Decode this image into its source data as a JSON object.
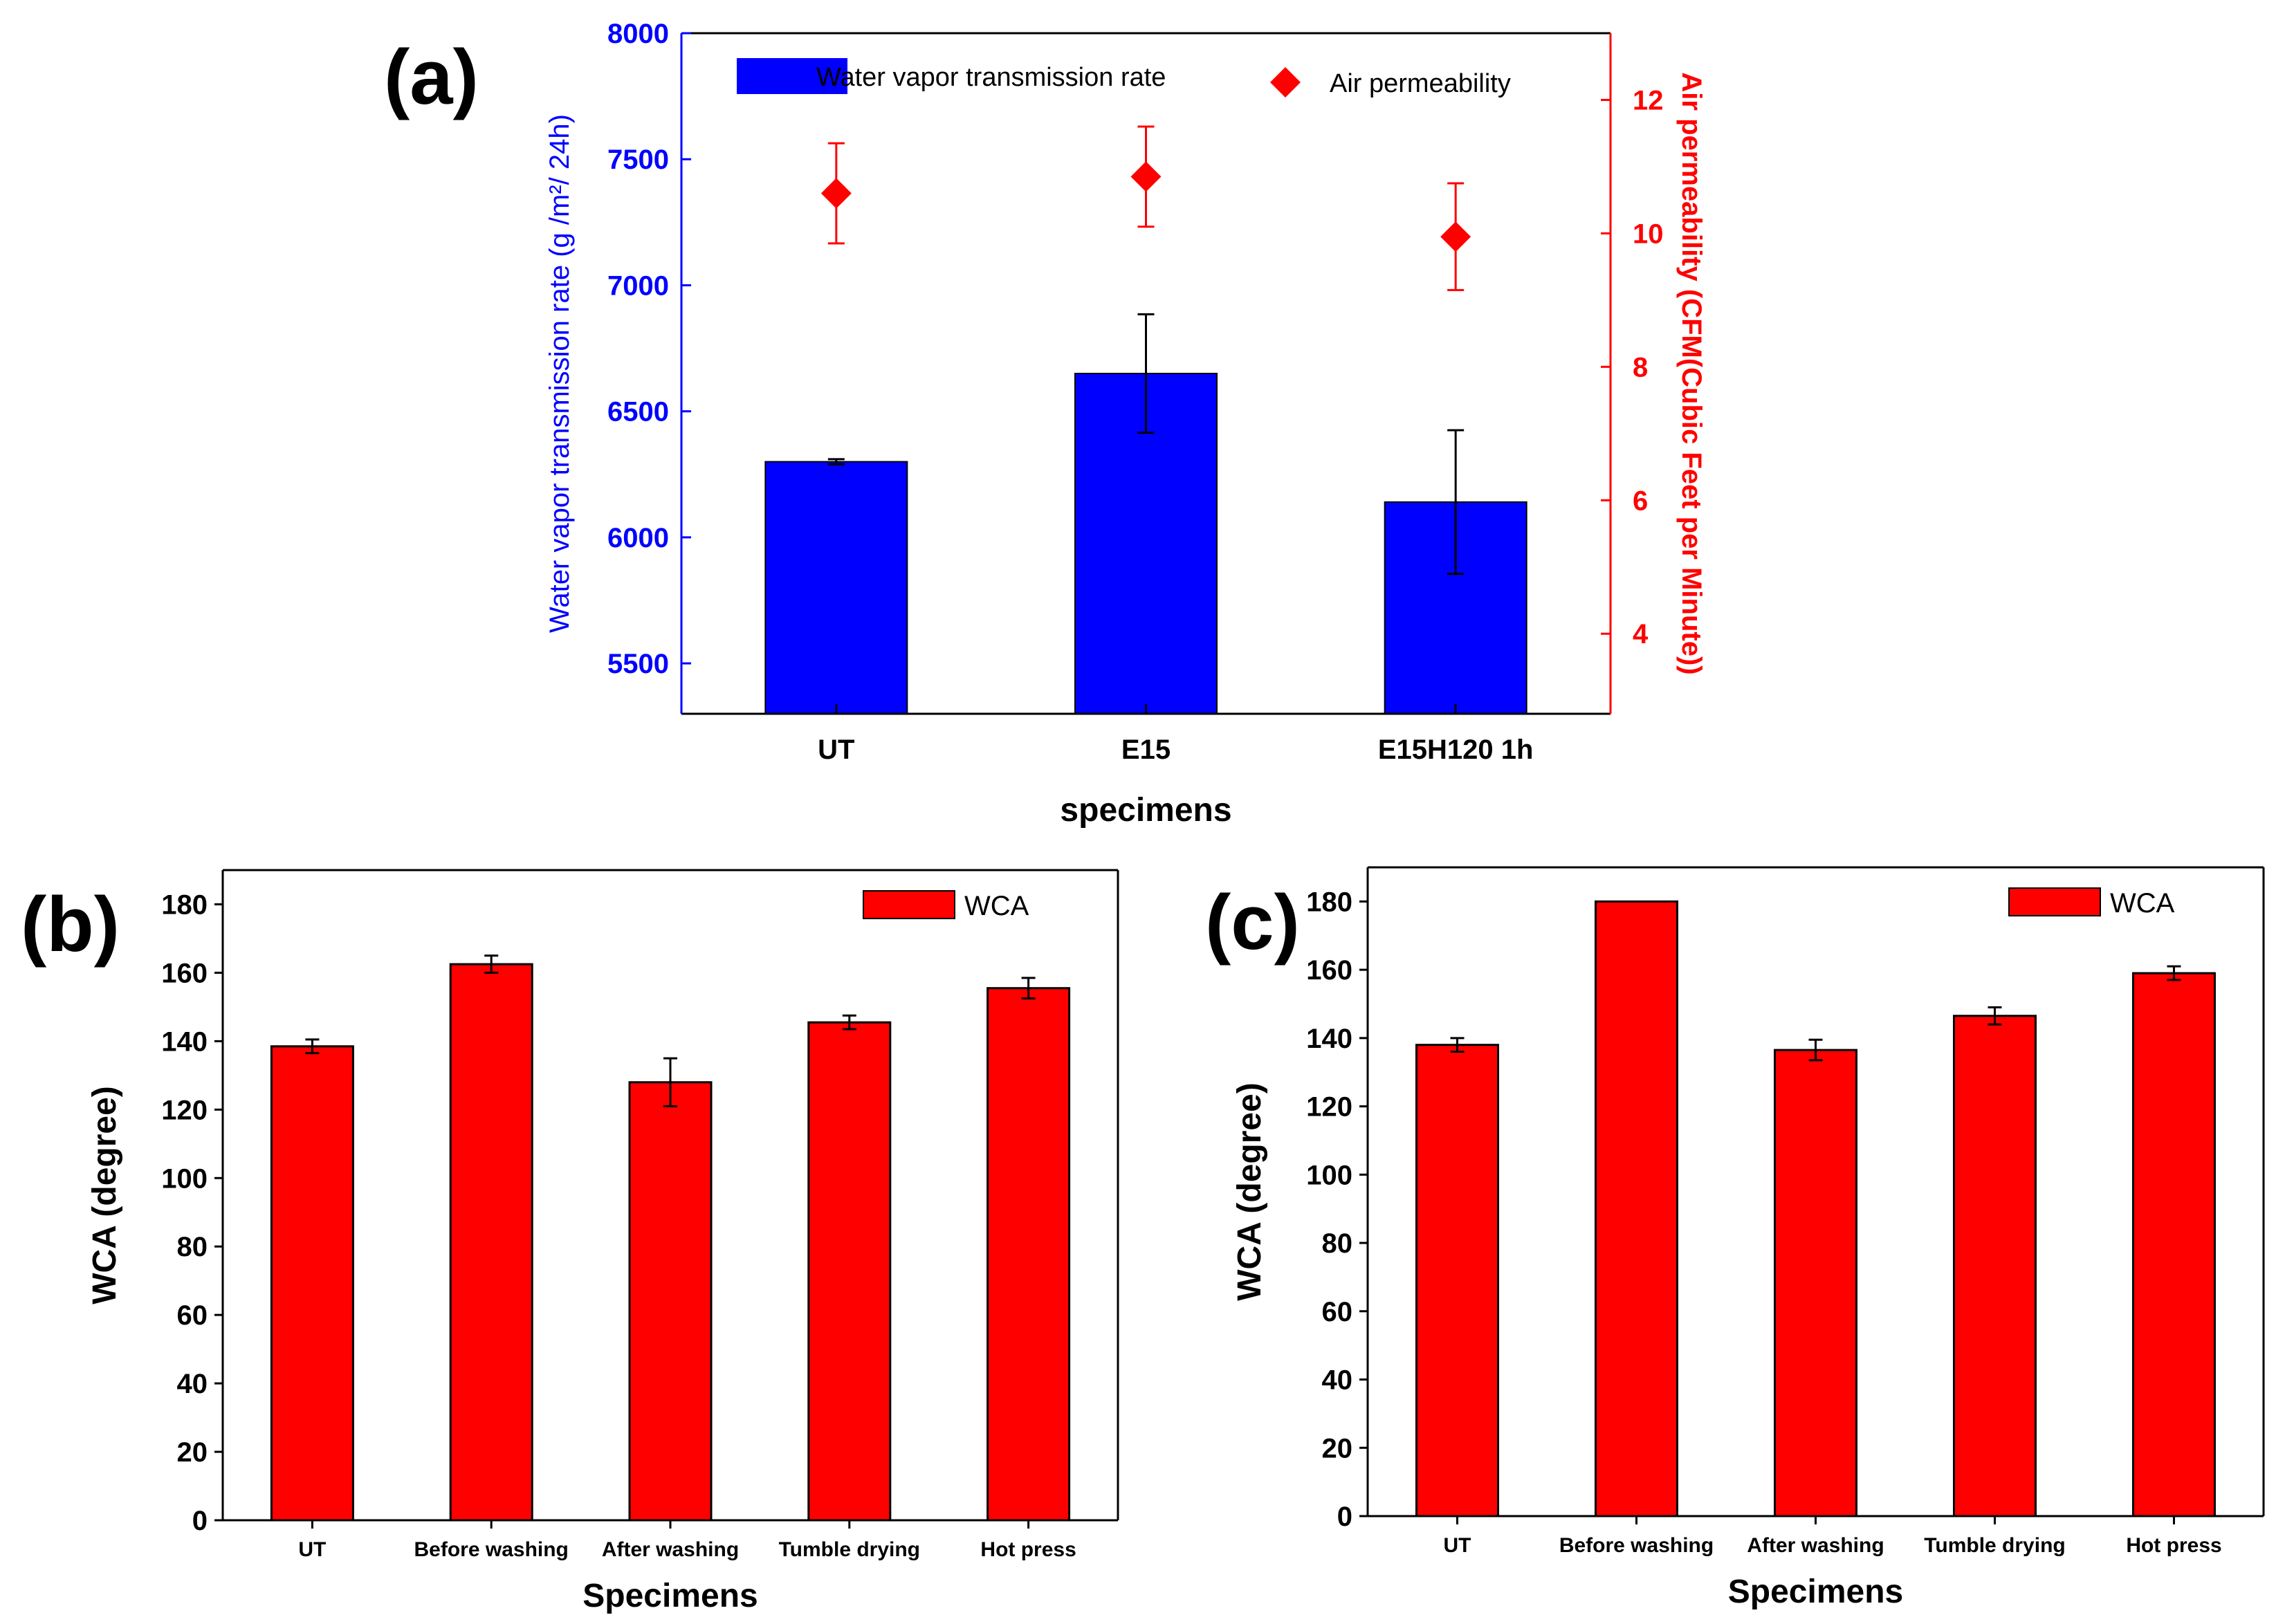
{
  "chart_data": [
    {
      "panel": "(a)",
      "type": "bar",
      "categories": [
        "UT",
        "E15",
        "E15H120 1h"
      ],
      "xlabel": "specimens",
      "ylabel": "Water vapor transmission rate (g /m²/ 24h)",
      "ylabel_right": "Air permeability (CFM(Cubic Feet per Minute))",
      "ylim": [
        5300,
        8000
      ],
      "yticks": [
        5500,
        6000,
        6500,
        7000,
        7500,
        8000
      ],
      "ylim_right": [
        2.8,
        13
      ],
      "yticks_right": [
        4,
        6,
        8,
        10,
        12
      ],
      "grid": false,
      "legend_position": "top",
      "series": [
        {
          "name": "Water vapor transmission rate",
          "type": "bar",
          "axis": "left",
          "color": "#0000ff",
          "values": [
            6300,
            6650,
            6140
          ],
          "errors": [
            10,
            235,
            285
          ]
        },
        {
          "name": "Air permeability",
          "type": "scatter",
          "marker": "diamond",
          "axis": "right",
          "color": "#ff0000",
          "values": [
            10.6,
            10.85,
            9.95
          ],
          "errors": [
            0.75,
            0.75,
            0.8
          ]
        }
      ]
    },
    {
      "panel": "(b)",
      "type": "bar",
      "categories": [
        "UT",
        "Before washing",
        "After washing",
        "Tumble drying",
        "Hot press"
      ],
      "xlabel": "Specimens",
      "ylabel": "WCA (degree)",
      "ylim": [
        0,
        190
      ],
      "yticks": [
        0,
        20,
        40,
        60,
        80,
        100,
        120,
        140,
        160,
        180
      ],
      "grid": false,
      "legend_position": "top-right",
      "series": [
        {
          "name": "WCA",
          "color": "#ff0000",
          "values": [
            138.5,
            162.5,
            128,
            145.5,
            155.5
          ],
          "errors": [
            2,
            2.5,
            7,
            2,
            3
          ]
        }
      ]
    },
    {
      "panel": "(c)",
      "type": "bar",
      "categories": [
        "UT",
        "Before washing",
        "After washing",
        "Tumble drying",
        "Hot press"
      ],
      "xlabel": "Specimens",
      "ylabel": "WCA (degree)",
      "ylim": [
        0,
        190
      ],
      "yticks": [
        0,
        20,
        40,
        60,
        80,
        100,
        120,
        140,
        160,
        180
      ],
      "grid": false,
      "legend_position": "top-right",
      "series": [
        {
          "name": "WCA",
          "color": "#ff0000",
          "values": [
            138,
            180,
            136.5,
            146.5,
            159
          ],
          "errors": [
            2,
            0,
            3,
            2.5,
            2
          ]
        }
      ]
    }
  ]
}
